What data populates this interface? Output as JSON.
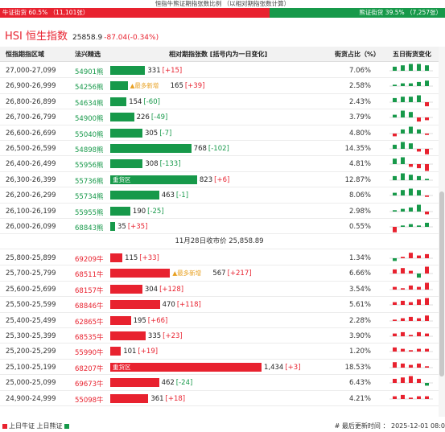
{
  "ratio": {
    "title": "恒指牛熊证期指张数比例 （以相对期指张数计算）",
    "bull_label": "牛证街货 60.5% （11,101张）",
    "bear_label": "熊证街货 39.5% （7,257张）",
    "bull_pct": 60.5,
    "colors": {
      "bull": "#e8222f",
      "bear": "#17994a"
    }
  },
  "index": {
    "name": "HSI 恒生指数",
    "value": "25858.9",
    "change": "-87.04(-0.34%)"
  },
  "columns": {
    "range": "恒指期指区域",
    "code": "法兴精选",
    "relative": "相对期指张数 [括号内为一日变化]",
    "share": "街货占比（%）",
    "spark": "五日街货变化"
  },
  "bear_rows": [
    {
      "range": "27,000-27,099",
      "code": "54901熊",
      "value": "331",
      "change": "[+15]",
      "share": "7.06%",
      "tag": "",
      "inbar": "",
      "spark": [
        3,
        4,
        5,
        5,
        4
      ]
    },
    {
      "range": "26,900-26,999",
      "code": "54256熊",
      "value": "165",
      "change": "[+39]",
      "share": "2.58%",
      "tag": "▲最多新增",
      "inbar": "",
      "spark": [
        1,
        2,
        2,
        3,
        4
      ]
    },
    {
      "range": "26,800-26,899",
      "code": "54634熊",
      "value": "154",
      "change": "[-60]",
      "share": "2.43%",
      "tag": "",
      "inbar": "",
      "spark": [
        3,
        4,
        4,
        5,
        -3
      ]
    },
    {
      "range": "26,700-26,799",
      "code": "54900熊",
      "value": "226",
      "change": "[-49]",
      "share": "3.79%",
      "tag": "",
      "inbar": "",
      "spark": [
        2,
        5,
        4,
        -3,
        -2
      ]
    },
    {
      "range": "26,600-26,699",
      "code": "55040熊",
      "value": "305",
      "change": "[-7]",
      "share": "4.80%",
      "tag": "",
      "inbar": "",
      "spark": [
        -2,
        3,
        5,
        3,
        -1
      ]
    },
    {
      "range": "26,500-26,599",
      "code": "54898熊",
      "value": "768",
      "change": "[-102]",
      "share": "14.35%",
      "tag": "",
      "inbar": "",
      "spark": [
        3,
        5,
        4,
        -2,
        -4
      ]
    },
    {
      "range": "26,400-26,499",
      "code": "55956熊",
      "value": "308",
      "change": "[-133]",
      "share": "4.81%",
      "tag": "",
      "inbar": "",
      "spark": [
        4,
        5,
        -2,
        -3,
        -5
      ]
    },
    {
      "range": "26,300-26,399",
      "code": "55736熊",
      "value": "823",
      "change": "[+6]",
      "share": "12.87%",
      "tag": "",
      "inbar": "重货区",
      "spark": [
        3,
        5,
        4,
        3,
        1
      ]
    },
    {
      "range": "26,200-26,299",
      "code": "55734熊",
      "value": "463",
      "change": "[-1]",
      "share": "8.06%",
      "tag": "",
      "inbar": "",
      "spark": [
        2,
        4,
        5,
        4,
        -1
      ]
    },
    {
      "range": "26,100-26,199",
      "code": "55955熊",
      "value": "190",
      "change": "[-25]",
      "share": "2.98%",
      "tag": "",
      "inbar": "",
      "spark": [
        1,
        2,
        3,
        5,
        -2
      ]
    },
    {
      "range": "26,000-26,099",
      "code": "68843熊",
      "value": "35",
      "change": "[+35]",
      "share": "0.55%",
      "tag": "",
      "inbar": "",
      "spark": [
        -4,
        1,
        2,
        1,
        3
      ]
    }
  ],
  "close_line": "11月28日收市价 25,858.89",
  "bull_rows": [
    {
      "range": "25,800-25,899",
      "code": "69209牛",
      "value": "115",
      "change": "[+33]",
      "share": "1.34%",
      "tag": "",
      "inbar": "",
      "spark": [
        -2,
        1,
        4,
        2,
        3
      ]
    },
    {
      "range": "25,700-25,799",
      "code": "68511牛",
      "value": "567",
      "change": "[+217]",
      "share": "6.66%",
      "tag": "▲最多新增",
      "inbar": "",
      "spark": [
        3,
        4,
        2,
        -3,
        5
      ]
    },
    {
      "range": "25,600-25,699",
      "code": "68157牛",
      "value": "304",
      "change": "[+128]",
      "share": "3.54%",
      "tag": "",
      "inbar": "",
      "spark": [
        2,
        1,
        3,
        2,
        5
      ]
    },
    {
      "range": "25,500-25,599",
      "code": "68846牛",
      "value": "470",
      "change": "[+118]",
      "share": "5.61%",
      "tag": "",
      "inbar": "",
      "spark": [
        2,
        3,
        2,
        4,
        5
      ]
    },
    {
      "range": "25,400-25,499",
      "code": "62865牛",
      "value": "195",
      "change": "[+66]",
      "share": "2.28%",
      "tag": "",
      "inbar": "",
      "spark": [
        1,
        2,
        3,
        2,
        4
      ]
    },
    {
      "range": "25,300-25,399",
      "code": "68535牛",
      "value": "335",
      "change": "[+23]",
      "share": "3.90%",
      "tag": "",
      "inbar": "",
      "spark": [
        2,
        3,
        1,
        3,
        2
      ]
    },
    {
      "range": "25,200-25,299",
      "code": "55990牛",
      "value": "101",
      "change": "[+19]",
      "share": "1.20%",
      "tag": "",
      "inbar": "",
      "spark": [
        3,
        2,
        1,
        2,
        2
      ]
    },
    {
      "range": "25,100-25,199",
      "code": "68207牛",
      "value": "1,434",
      "change": "[+3]",
      "share": "18.53%",
      "tag": "",
      "inbar": "重货区",
      "spark": [
        4,
        3,
        2,
        3,
        1
      ]
    },
    {
      "range": "25,000-25,099",
      "code": "69673牛",
      "value": "462",
      "change": "[-24]",
      "share": "6.43%",
      "tag": "",
      "inbar": "",
      "spark": [
        3,
        4,
        5,
        3,
        -2
      ]
    },
    {
      "range": "24,900-24,999",
      "code": "55098牛",
      "value": "361",
      "change": "[+18]",
      "share": "4.21%",
      "tag": "",
      "inbar": "",
      "spark": [
        2,
        3,
        1,
        2,
        2
      ]
    }
  ],
  "footer": {
    "legend_bull": "上日牛证",
    "legend_bear": "上日熊证",
    "updated": "# 最后更新时间 ： 2025-12-01 08:0"
  }
}
